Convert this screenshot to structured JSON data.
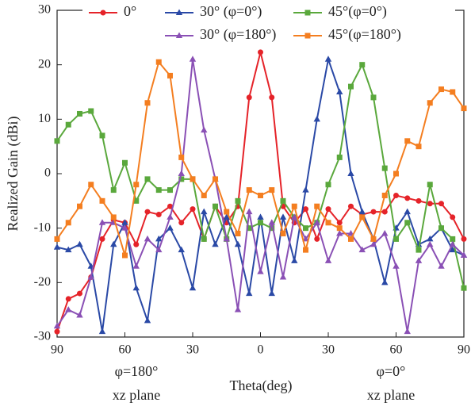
{
  "chart_data": {
    "type": "line",
    "x_label": "Theta(deg)",
    "y_label": "Realized Gain (dBi)",
    "x": [
      -90,
      -85,
      -80,
      -75,
      -70,
      -65,
      -60,
      -55,
      -50,
      -45,
      -40,
      -35,
      -30,
      -25,
      -20,
      -15,
      -10,
      -5,
      0,
      5,
      10,
      15,
      20,
      25,
      30,
      35,
      40,
      45,
      50,
      55,
      60,
      65,
      70,
      75,
      80,
      85,
      90
    ],
    "series": [
      {
        "name": "0°",
        "color": "#e52329",
        "marker": "circle",
        "values": [
          -29,
          -23,
          -22,
          -19,
          -12,
          -8.5,
          -9,
          -13,
          -7,
          -7.5,
          -6,
          -9,
          -6.5,
          -12,
          -6,
          -9,
          -6,
          14,
          22.3,
          14,
          -6,
          -9,
          -6.5,
          -12,
          -6.5,
          -9,
          -6,
          -7.5,
          -7,
          -7,
          -4,
          -4.5,
          -5,
          -5.5,
          -5.5,
          -8,
          -12
        ]
      },
      {
        "name": "30° (φ=0°)",
        "color": "#2a49a6",
        "marker": "triangle",
        "values": [
          -13.5,
          -14,
          -13,
          -17,
          -29,
          -13,
          -9,
          -21,
          -27,
          -12,
          -10,
          -14,
          -21,
          -7,
          -13,
          -8,
          -13,
          -22,
          -8,
          -22,
          -8,
          -16,
          -3,
          10,
          21,
          15,
          0,
          -7,
          -12,
          -20,
          -10,
          -7,
          -13,
          -12,
          -10,
          -14,
          -15
        ]
      },
      {
        "name": "45°(φ=0°)",
        "color": "#5aa83c",
        "marker": "square",
        "values": [
          6,
          9,
          11,
          11.5,
          7,
          -3,
          2,
          -5,
          -1,
          -3,
          -3,
          -1,
          -1,
          -12,
          -6,
          -12,
          -5,
          -10,
          -9,
          -10,
          -5,
          -8,
          -10,
          -9,
          -2,
          3,
          16,
          20,
          14,
          1,
          -12,
          -9,
          -14,
          -2,
          -10,
          -12,
          -21
        ]
      },
      {
        "name": "30° (φ=180°)",
        "color": "#8a50b5",
        "marker": "triangle",
        "values": [
          -28,
          -25,
          -26,
          -19,
          -9,
          -9,
          -10,
          -17,
          -12,
          -14,
          -8,
          0,
          21,
          8,
          -1,
          -12,
          -25,
          -7,
          -18,
          -9,
          -19,
          -8,
          -12,
          -9,
          -16,
          -11,
          -11,
          -14,
          -13,
          -11,
          -17,
          -29,
          -16,
          -13,
          -17,
          -13,
          -15
        ]
      },
      {
        "name": "45°(φ=180°)",
        "color": "#f47e20",
        "marker": "square",
        "values": [
          -12,
          -9,
          -6,
          -2,
          -5,
          -8,
          -15,
          -2,
          13,
          20.5,
          18,
          3,
          -1,
          -4,
          -1,
          -7,
          -11,
          -3,
          -4,
          -3,
          -11,
          -6,
          -14,
          -6,
          -9,
          -10,
          -12,
          -8,
          -12,
          -4,
          0,
          6,
          5,
          13,
          15.5,
          15,
          12
        ]
      }
    ],
    "xlim": [
      -90,
      90
    ],
    "xticks": [
      {
        "value": -90,
        "label": "90"
      },
      {
        "value": -60,
        "label": "60"
      },
      {
        "value": -30,
        "label": "30"
      },
      0,
      30,
      60,
      90
    ],
    "ylim": [
      -30,
      30
    ],
    "yticks": [
      -30,
      -20,
      -10,
      0,
      10,
      20,
      30
    ],
    "annotations": [
      "φ=180°",
      "xz plane",
      "φ=0°",
      "xz plane"
    ]
  }
}
